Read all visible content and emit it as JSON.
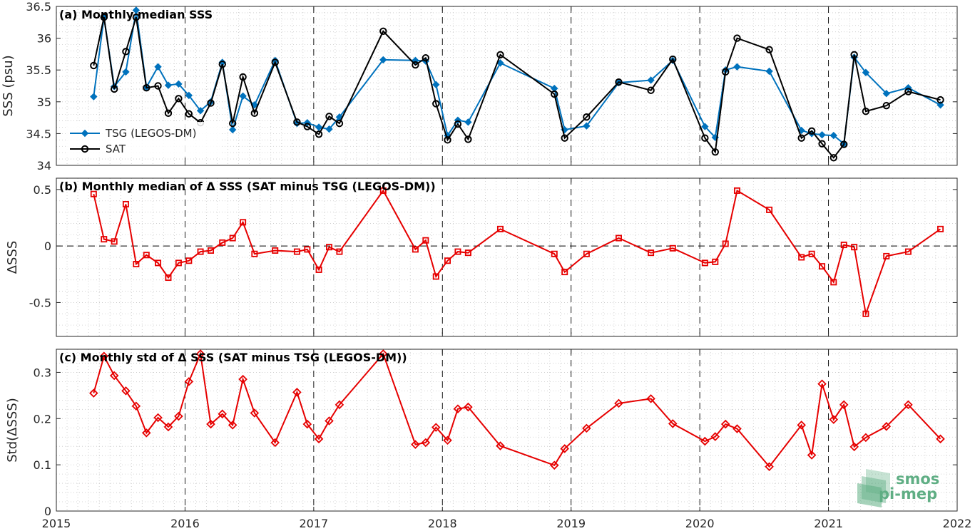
{
  "colors": {
    "tsg": "#0072BD",
    "sat": "#000000",
    "delta": "#E60000",
    "logo": "#5FAE84"
  },
  "logo": {
    "line1": "smos",
    "line2": "pi-mep"
  },
  "x_ticks": [
    "2015",
    "2016",
    "2017",
    "2018",
    "2019",
    "2020",
    "2021",
    "2022"
  ],
  "chart_data": [
    {
      "type": "line",
      "title": "(a) Monthly median SSS",
      "xlabel": "",
      "ylabel": "SSS (psu)",
      "xlim": [
        2015,
        2022
      ],
      "ylim": [
        34,
        36.5
      ],
      "yticks": [
        "34",
        "34.5",
        "35",
        "35.5",
        "36",
        "36.5"
      ],
      "ytick_values": [
        34,
        34.5,
        35,
        35.5,
        36,
        36.5
      ],
      "grid": true,
      "legend": "lower-left",
      "series": [
        {
          "name": "TSG (LEGOS-DM)",
          "marker": "diamond-filled",
          "x": [
            2015.29,
            2015.37,
            2015.45,
            2015.54,
            2015.62,
            2015.7,
            2015.79,
            2015.87,
            2015.95,
            2016.03,
            2016.12,
            2016.2,
            2016.29,
            2016.37,
            2016.45,
            2016.54,
            2016.7,
            2016.87,
            2016.95,
            2017.04,
            2017.12,
            2017.2,
            2017.54,
            2017.79,
            2017.87,
            2017.95,
            2018.04,
            2018.12,
            2018.2,
            2018.45,
            2018.87,
            2018.95,
            2019.12,
            2019.37,
            2019.62,
            2019.79,
            2020.04,
            2020.12,
            2020.2,
            2020.29,
            2020.54,
            2020.79,
            2020.87,
            2020.95,
            2021.04,
            2021.12,
            2021.2,
            2021.29,
            2021.45,
            2021.62,
            2021.87
          ],
          "y": [
            35.08,
            36.33,
            35.24,
            35.47,
            36.44,
            35.23,
            35.55,
            35.26,
            35.28,
            35.1,
            34.86,
            35.0,
            35.62,
            34.56,
            35.09,
            34.95,
            35.65,
            34.66,
            34.67,
            34.6,
            34.57,
            34.76,
            35.66,
            35.65,
            35.64,
            35.27,
            34.47,
            34.71,
            34.68,
            35.61,
            35.21,
            34.56,
            34.62,
            35.3,
            35.34,
            35.65,
            34.61,
            34.44,
            35.5,
            35.55,
            35.48,
            34.55,
            34.5,
            34.48,
            34.47,
            34.34,
            35.7,
            35.46,
            35.13,
            35.22,
            34.95
          ]
        },
        {
          "name": "SAT",
          "marker": "circle-open",
          "x": [
            2015.29,
            2015.37,
            2015.45,
            2015.54,
            2015.62,
            2015.7,
            2015.79,
            2015.87,
            2015.95,
            2016.03,
            2016.12,
            2016.2,
            2016.29,
            2016.37,
            2016.45,
            2016.54,
            2016.7,
            2016.87,
            2016.95,
            2017.04,
            2017.12,
            2017.2,
            2017.54,
            2017.79,
            2017.87,
            2017.95,
            2018.04,
            2018.12,
            2018.2,
            2018.45,
            2018.87,
            2018.95,
            2019.12,
            2019.37,
            2019.62,
            2019.79,
            2020.04,
            2020.12,
            2020.2,
            2020.29,
            2020.54,
            2020.79,
            2020.87,
            2020.95,
            2021.04,
            2021.12,
            2021.2,
            2021.29,
            2021.45,
            2021.62,
            2021.87
          ],
          "y": [
            35.57,
            36.33,
            35.2,
            35.79,
            36.33,
            35.22,
            35.25,
            34.82,
            35.05,
            34.81,
            34.67,
            34.98,
            35.59,
            34.66,
            35.39,
            34.82,
            35.62,
            34.68,
            34.61,
            34.49,
            34.77,
            34.66,
            36.11,
            35.58,
            35.69,
            34.97,
            34.4,
            34.65,
            34.41,
            35.74,
            35.12,
            34.43,
            34.76,
            35.31,
            35.18,
            35.67,
            34.43,
            34.21,
            35.47,
            36.0,
            35.82,
            34.43,
            34.54,
            34.34,
            34.12,
            34.33,
            35.74,
            34.85,
            34.94,
            35.16,
            35.03
          ]
        }
      ]
    },
    {
      "type": "line",
      "title": "(b) Monthly median of Δ SSS (SAT minus TSG (LEGOS-DM))",
      "xlabel": "",
      "ylabel": "ΔSSS",
      "xlim": [
        2015,
        2022
      ],
      "ylim": [
        -0.8,
        0.6
      ],
      "yticks": [
        "-0.5",
        "0",
        "0.5"
      ],
      "ytick_values": [
        -0.5,
        0,
        0.5
      ],
      "grid": true,
      "zero_line": true,
      "series": [
        {
          "marker": "square-open",
          "x": [
            2015.29,
            2015.37,
            2015.45,
            2015.54,
            2015.62,
            2015.7,
            2015.79,
            2015.87,
            2015.95,
            2016.03,
            2016.12,
            2016.2,
            2016.29,
            2016.37,
            2016.45,
            2016.54,
            2016.7,
            2016.87,
            2016.95,
            2017.04,
            2017.12,
            2017.2,
            2017.54,
            2017.79,
            2017.87,
            2017.95,
            2018.04,
            2018.12,
            2018.2,
            2018.45,
            2018.87,
            2018.95,
            2019.12,
            2019.37,
            2019.62,
            2019.79,
            2020.04,
            2020.12,
            2020.2,
            2020.29,
            2020.54,
            2020.79,
            2020.87,
            2020.95,
            2021.04,
            2021.12,
            2021.2,
            2021.29,
            2021.45,
            2021.62,
            2021.87
          ],
          "y": [
            0.46,
            0.06,
            0.04,
            0.37,
            -0.16,
            -0.08,
            -0.15,
            -0.28,
            -0.15,
            -0.13,
            -0.05,
            -0.04,
            0.03,
            0.07,
            0.21,
            -0.07,
            -0.04,
            -0.05,
            -0.03,
            -0.21,
            -0.01,
            -0.05,
            0.49,
            -0.03,
            0.05,
            -0.27,
            -0.13,
            -0.05,
            -0.06,
            0.15,
            -0.07,
            -0.23,
            -0.07,
            0.07,
            -0.06,
            -0.02,
            -0.15,
            -0.14,
            0.02,
            0.49,
            0.32,
            -0.1,
            -0.07,
            -0.18,
            -0.32,
            0.01,
            -0.01,
            -0.6,
            -0.09,
            -0.05,
            0.15
          ]
        }
      ]
    },
    {
      "type": "line",
      "title": "(c) Monthly std of Δ SSS (SAT minus TSG (LEGOS-DM))",
      "xlabel": "",
      "ylabel": "Std(ΔSSS)",
      "xlim": [
        2015,
        2022
      ],
      "ylim": [
        0,
        0.35
      ],
      "yticks": [
        "0",
        "0.1",
        "0.2",
        "0.3"
      ],
      "ytick_values": [
        0,
        0.1,
        0.2,
        0.3
      ],
      "grid": true,
      "series": [
        {
          "marker": "diamond-open",
          "x": [
            2015.29,
            2015.37,
            2015.45,
            2015.54,
            2015.62,
            2015.7,
            2015.79,
            2015.87,
            2015.95,
            2016.03,
            2016.12,
            2016.2,
            2016.29,
            2016.37,
            2016.45,
            2016.54,
            2016.7,
            2016.87,
            2016.95,
            2017.04,
            2017.12,
            2017.2,
            2017.54,
            2017.79,
            2017.87,
            2017.95,
            2018.04,
            2018.12,
            2018.2,
            2018.45,
            2018.87,
            2018.95,
            2019.12,
            2019.37,
            2019.62,
            2019.79,
            2020.04,
            2020.12,
            2020.2,
            2020.29,
            2020.54,
            2020.79,
            2020.87,
            2020.95,
            2021.04,
            2021.12,
            2021.2,
            2021.29,
            2021.45,
            2021.62,
            2021.87
          ],
          "y": [
            0.255,
            0.335,
            0.293,
            0.26,
            0.227,
            0.169,
            0.202,
            0.182,
            0.205,
            0.28,
            0.34,
            0.188,
            0.21,
            0.186,
            0.285,
            0.212,
            0.148,
            0.257,
            0.188,
            0.156,
            0.195,
            0.23,
            0.34,
            0.144,
            0.148,
            0.181,
            0.153,
            0.221,
            0.225,
            0.141,
            0.099,
            0.135,
            0.179,
            0.233,
            0.243,
            0.189,
            0.151,
            0.161,
            0.188,
            0.178,
            0.096,
            0.186,
            0.121,
            0.275,
            0.198,
            0.23,
            0.139,
            0.159,
            0.183,
            0.23,
            0.156
          ]
        }
      ]
    }
  ]
}
